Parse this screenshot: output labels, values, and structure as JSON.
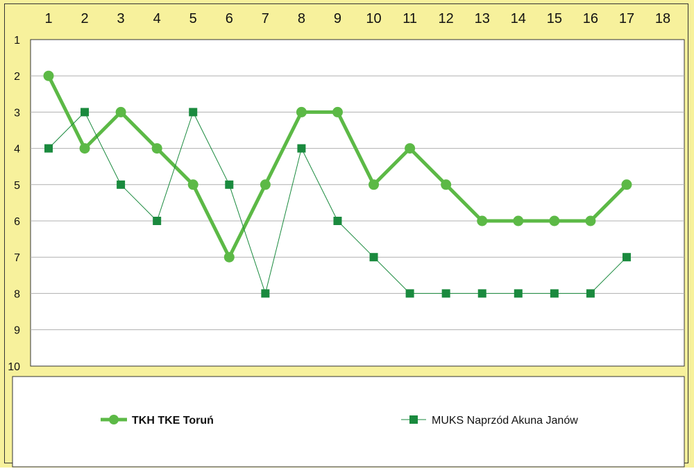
{
  "chart_data": {
    "type": "line",
    "x": [
      1,
      2,
      3,
      4,
      5,
      6,
      7,
      8,
      9,
      10,
      11,
      12,
      13,
      14,
      15,
      16,
      17
    ],
    "x_ticks": [
      "1",
      "2",
      "3",
      "4",
      "5",
      "6",
      "7",
      "8",
      "9",
      "10",
      "11",
      "12",
      "13",
      "14",
      "15",
      "16",
      "17",
      "18"
    ],
    "y_ticks": [
      "1",
      "2",
      "3",
      "4",
      "5",
      "6",
      "7",
      "8",
      "9",
      "10"
    ],
    "xlim": [
      1,
      18
    ],
    "ylim": [
      1,
      10
    ],
    "y_inverted": true,
    "x_axis_position": "top",
    "grid": "horizontal",
    "legend_position": "bottom",
    "title": "",
    "xlabel": "",
    "ylabel": "",
    "series": [
      {
        "name": "TKH TKE Toruń",
        "marker": "circle",
        "line": "thick",
        "color": "#5cb946",
        "values": [
          2,
          4,
          3,
          4,
          5,
          7,
          5,
          3,
          3,
          5,
          4,
          5,
          6,
          6,
          6,
          6,
          5
        ]
      },
      {
        "name": "MUKS Naprzód Akuna Janów",
        "marker": "square",
        "line": "thin",
        "color": "#1a8a3e",
        "values": [
          4,
          3,
          5,
          6,
          3,
          5,
          8,
          4,
          6,
          7,
          8,
          8,
          8,
          8,
          8,
          8,
          7
        ]
      }
    ]
  },
  "colors": {
    "frame_background": "#f7f19c",
    "plot_background": "#ffffff",
    "gridline": "#b0b0b0",
    "border": "#333333"
  }
}
